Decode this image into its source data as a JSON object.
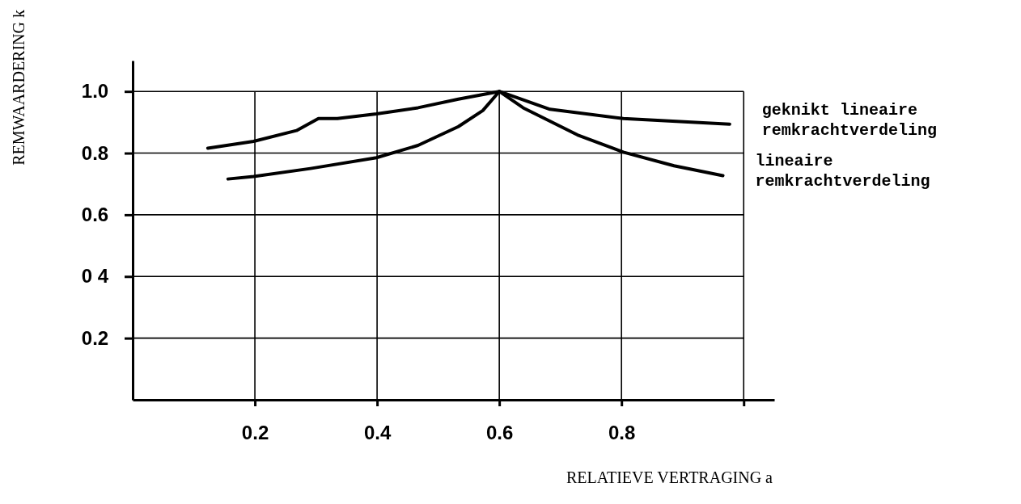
{
  "chart_data": {
    "type": "line",
    "xlabel": "RELATIEVE VERTRAGING a",
    "ylabel": "REMWAARDERING k",
    "xlim": [
      0,
      1.05
    ],
    "xticks": [
      0.2,
      0.4,
      0.6,
      0.8,
      {
        "value": 1.0,
        "label": null
      }
    ],
    "ylim": [
      0,
      1.1
    ],
    "yticks": [
      0.2,
      {
        "value": 0.4,
        "label": "0 4"
      },
      0.6,
      0.8,
      {
        "value": 1.0,
        "label": "1.0"
      }
    ],
    "grid": true,
    "legend": false,
    "marker": "none",
    "line_style": "solid",
    "series": [
      {
        "name": "geknikt lineaire remkrachtverdeling",
        "color": "#000000",
        "x": [
          0.123,
          0.198,
          0.268,
          0.304,
          0.335,
          0.399,
          0.467,
          0.533,
          0.6,
          0.683,
          0.803,
          0.977
        ],
        "values": [
          0.816,
          0.838,
          0.873,
          0.912,
          0.912,
          0.927,
          0.947,
          0.975,
          1.0,
          0.942,
          0.912,
          0.894
        ]
      },
      {
        "name": "lineaire remkrachtverdeling",
        "color": "#000000",
        "x": [
          0.156,
          0.198,
          0.291,
          0.399,
          0.467,
          0.533,
          0.573,
          0.6,
          0.639,
          0.728,
          0.803,
          0.886,
          0.966
        ],
        "values": [
          0.716,
          0.724,
          0.75,
          0.785,
          0.825,
          0.886,
          0.938,
          1.0,
          0.947,
          0.859,
          0.803,
          0.759,
          0.727
        ]
      }
    ]
  }
}
